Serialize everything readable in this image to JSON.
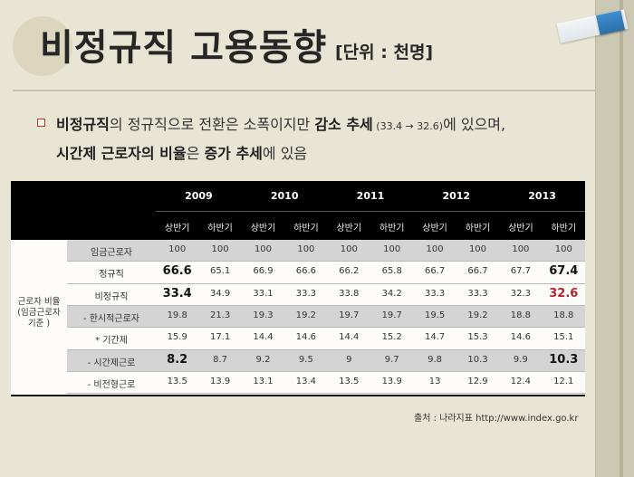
{
  "title": "비정규직 고용동향",
  "unit": "[단위 : 천명]",
  "bullet": {
    "line1": {
      "b1": "비정규직",
      "t1": "의 정규직으로 전환은 소폭이지만 ",
      "b2": "감소 추세",
      "small": " (33.4 → 32.6)",
      "t2": "에 있으며,"
    },
    "line2": {
      "b1": "시간제 근로자의 비율",
      "t1": "은 ",
      "b2": "증가 추세",
      "t2": "에 있음"
    }
  },
  "table": {
    "years": [
      "2009",
      "2010",
      "2011",
      "2012",
      "2013"
    ],
    "halves": [
      "상반기",
      "하반기",
      "상반기",
      "하반기",
      "상반기",
      "하반기",
      "상반기",
      "하반기",
      "상반기",
      "하반기"
    ],
    "group_label": "근로자 비율\n(임금근로자\n기준 )",
    "rows": [
      {
        "label": "임금근로자",
        "values": [
          "100",
          "100",
          "100",
          "100",
          "100",
          "100",
          "100",
          "100",
          "100",
          "100"
        ]
      },
      {
        "label": "정규직",
        "values": [
          "66.6",
          "65.1",
          "66.9",
          "66.6",
          "66.2",
          "65.8",
          "66.7",
          "66.7",
          "67.7",
          "67.4"
        ]
      },
      {
        "label": "비정규직",
        "values": [
          "33.4",
          "34.9",
          "33.1",
          "33.3",
          "33.8",
          "34.2",
          "33.3",
          "33.3",
          "32.3",
          "32.6"
        ]
      },
      {
        "label": "- 한시적근로자",
        "values": [
          "19.8",
          "21.3",
          "19.3",
          "19.2",
          "19.7",
          "19.7",
          "19.5",
          "19.2",
          "18.8",
          "18.8"
        ]
      },
      {
        "label": "* 기간제",
        "values": [
          "15.9",
          "17.1",
          "14.4",
          "14.6",
          "14.4",
          "15.2",
          "14.7",
          "15.3",
          "14.6",
          "15.1"
        ]
      },
      {
        "label": "- 시간제근로",
        "values": [
          "8.2",
          "8.7",
          "9.2",
          "9.5",
          "9",
          "9.7",
          "9.8",
          "10.3",
          "9.9",
          "10.3"
        ]
      },
      {
        "label": "- 비전형근로",
        "values": [
          "13.5",
          "13.9",
          "13.1",
          "13.4",
          "13.5",
          "13.9",
          "13",
          "12.9",
          "12.4",
          "12.1"
        ]
      }
    ]
  },
  "source": "출처 : 나라지표 http://www.index.go.kr",
  "colors": {
    "background": "#e9e5d4",
    "accent_red": "#b3262a",
    "header_black": "#000000"
  }
}
